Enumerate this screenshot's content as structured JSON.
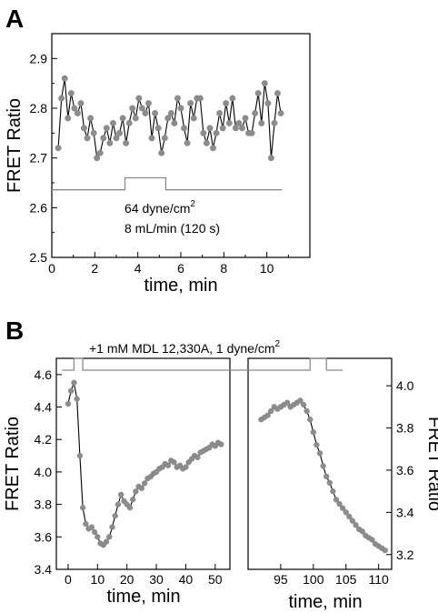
{
  "chart_data": [
    {
      "panel": "A",
      "type": "scatter",
      "xlabel": "time, min",
      "ylabel": "FRET Ratio",
      "xlim": [
        0,
        12
      ],
      "ylim": [
        2.5,
        2.95
      ],
      "xticks": [
        0,
        2,
        4,
        6,
        8,
        10
      ],
      "yticks": [
        2.5,
        2.6,
        2.7,
        2.8,
        2.9
      ],
      "x": [
        0.3,
        0.45,
        0.6,
        0.75,
        0.9,
        1.05,
        1.2,
        1.35,
        1.5,
        1.65,
        1.8,
        1.95,
        2.1,
        2.25,
        2.4,
        2.55,
        2.7,
        2.85,
        3.0,
        3.15,
        3.3,
        3.45,
        3.6,
        3.75,
        3.9,
        4.05,
        4.2,
        4.35,
        4.5,
        4.65,
        4.8,
        4.95,
        5.1,
        5.25,
        5.4,
        5.55,
        5.7,
        5.85,
        6.0,
        6.15,
        6.3,
        6.45,
        6.6,
        6.75,
        6.9,
        7.05,
        7.2,
        7.35,
        7.5,
        7.65,
        7.8,
        7.95,
        8.1,
        8.25,
        8.4,
        8.55,
        8.7,
        8.85,
        9.0,
        9.15,
        9.3,
        9.45,
        9.6,
        9.75,
        9.9,
        10.05,
        10.2,
        10.35,
        10.5,
        10.65
      ],
      "values": [
        2.72,
        2.82,
        2.86,
        2.78,
        2.83,
        2.8,
        2.79,
        2.81,
        2.76,
        2.74,
        2.78,
        2.75,
        2.7,
        2.71,
        2.74,
        2.76,
        2.73,
        2.77,
        2.74,
        2.75,
        2.78,
        2.73,
        2.77,
        2.8,
        2.78,
        2.82,
        2.8,
        2.79,
        2.81,
        2.74,
        2.79,
        2.76,
        2.71,
        2.74,
        2.78,
        2.79,
        2.77,
        2.82,
        2.8,
        2.76,
        2.73,
        2.81,
        2.78,
        2.82,
        2.82,
        2.75,
        2.73,
        2.76,
        2.72,
        2.75,
        2.79,
        2.76,
        2.81,
        2.77,
        2.82,
        2.76,
        2.77,
        2.76,
        2.78,
        2.75,
        2.75,
        2.79,
        2.83,
        2.77,
        2.85,
        2.81,
        2.7,
        2.77,
        2.83,
        2.79
      ],
      "stimulus": {
        "x": [
          0,
          3.4,
          3.4,
          5.3,
          5.3,
          10.7
        ],
        "y": [
          2.636,
          2.636,
          2.66,
          2.66,
          2.636,
          2.636
        ]
      },
      "annotation_line1": "64 dyne/cm",
      "annotation_line1_sup": "2",
      "annotation_line2": "8 mL/min (120 s)"
    },
    {
      "panel": "B",
      "type": "scatter",
      "xlabel_left": "time, min",
      "xlabel_right": "time, min",
      "ylabel_left": "FRET Ratio",
      "ylabel_right": "FRET Ratio",
      "left": {
        "xlim": [
          -4,
          55
        ],
        "ylim": [
          3.4,
          4.7
        ],
        "xticks": [
          0,
          10,
          20,
          30,
          40,
          50
        ],
        "yticks": [
          3.4,
          3.6,
          3.8,
          4.0,
          4.2,
          4.4,
          4.6
        ],
        "x": [
          0,
          1,
          2,
          3,
          4,
          5,
          6,
          7,
          8,
          9,
          10,
          11,
          12,
          13,
          14,
          15,
          16,
          17,
          18,
          19,
          20,
          21,
          22,
          23,
          24,
          25,
          26,
          27,
          28,
          29,
          30,
          31,
          32,
          33,
          34,
          35,
          36,
          37,
          38,
          39,
          40,
          41,
          42,
          43,
          44,
          45,
          46,
          47,
          48,
          49,
          50,
          51,
          52
        ],
        "values": [
          4.42,
          4.5,
          4.55,
          4.45,
          4.1,
          3.78,
          3.68,
          3.65,
          3.66,
          3.63,
          3.6,
          3.56,
          3.55,
          3.57,
          3.6,
          3.66,
          3.73,
          3.8,
          3.86,
          3.82,
          3.8,
          3.78,
          3.83,
          3.88,
          3.91,
          3.9,
          3.93,
          3.96,
          3.97,
          3.99,
          4.0,
          4.02,
          4.03,
          4.05,
          4.04,
          4.07,
          4.06,
          4.03,
          4.04,
          4.02,
          4.03,
          4.06,
          4.08,
          4.1,
          4.09,
          4.12,
          4.13,
          4.14,
          4.15,
          4.17,
          4.16,
          4.18,
          4.17
        ]
      },
      "right": {
        "xlim": [
          90,
          112
        ],
        "ylim": [
          3.13,
          4.13
        ],
        "xticks": [
          95,
          100,
          105,
          110
        ],
        "yticks": [
          3.2,
          3.4,
          3.6,
          3.8,
          4.0
        ],
        "x": [
          92,
          92.5,
          93,
          93.5,
          94,
          94.5,
          95,
          95.5,
          96,
          96.5,
          97,
          97.5,
          98,
          98.5,
          99,
          99.5,
          100,
          100.5,
          101,
          101.5,
          102,
          102.5,
          103,
          103.5,
          104,
          104.5,
          105,
          105.5,
          106,
          106.5,
          107,
          107.5,
          108,
          108.5,
          109,
          109.5,
          110,
          110.5,
          111
        ],
        "values": [
          3.84,
          3.85,
          3.86,
          3.88,
          3.9,
          3.89,
          3.9,
          3.91,
          3.92,
          3.9,
          3.91,
          3.92,
          3.93,
          3.91,
          3.88,
          3.84,
          3.78,
          3.72,
          3.68,
          3.62,
          3.57,
          3.54,
          3.5,
          3.46,
          3.44,
          3.42,
          3.4,
          3.38,
          3.36,
          3.34,
          3.32,
          3.31,
          3.29,
          3.28,
          3.27,
          3.25,
          3.24,
          3.23,
          3.22
        ]
      },
      "stimulus": {
        "x": [
          -2,
          2,
          2,
          5,
          5,
          99.5,
          99.5,
          102,
          102,
          104.5
        ],
        "level_low": 0,
        "level_high": 1
      },
      "annotation": "+1 mM MDL 12,330A, 1 dyne/cm",
      "annotation_sup": "2"
    }
  ]
}
